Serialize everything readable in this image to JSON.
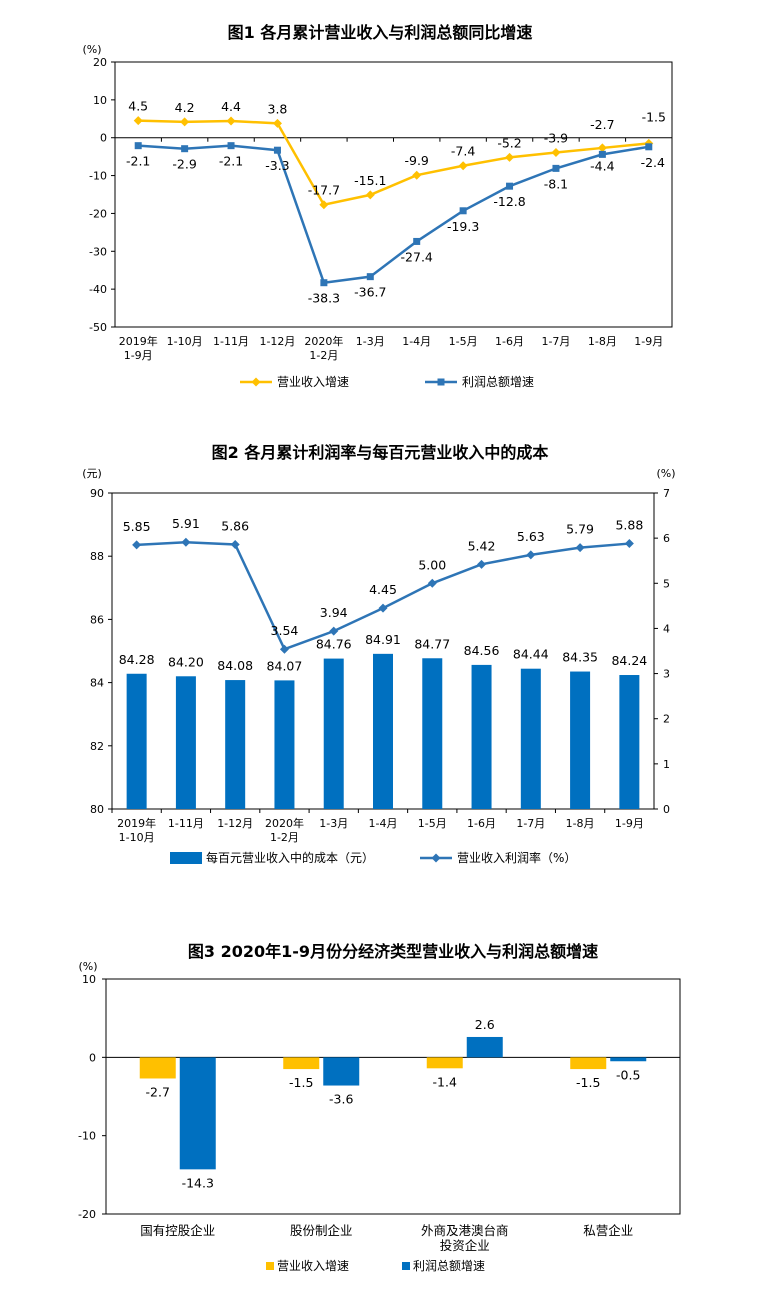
{
  "chart_data": [
    {
      "type": "line",
      "title": "图1  各月累计营业收入与利润总额同比增速",
      "unit": "(%)",
      "categories": [
        "2019年\n1-9月",
        "1-10月",
        "1-11月",
        "1-12月",
        "2020年\n1-2月",
        "1-3月",
        "1-4月",
        "1-5月",
        "1-6月",
        "1-7月",
        "1-8月",
        "1-9月"
      ],
      "ylim": [
        -50,
        20
      ],
      "yticks": [
        -50,
        -40,
        -30,
        -20,
        -10,
        0,
        10,
        20
      ],
      "series": [
        {
          "name": "营业收入增速",
          "color": "#FFC000",
          "marker": "diamond",
          "values": [
            4.5,
            4.2,
            4.4,
            3.8,
            -17.7,
            -15.1,
            -9.9,
            -7.4,
            -5.2,
            -3.9,
            -2.7,
            -1.5
          ]
        },
        {
          "name": "利润总额增速",
          "color": "#2E75B6",
          "marker": "square",
          "values": [
            -2.1,
            -2.9,
            -2.1,
            -3.3,
            -38.3,
            -36.7,
            -27.4,
            -19.3,
            -12.8,
            -8.1,
            -4.4,
            -2.4
          ]
        }
      ],
      "legend": "bottom",
      "grid": false
    },
    {
      "type": "bar+line",
      "title": "图2  各月累计利润率与每百元营业收入中的成本",
      "left_unit": "(元)",
      "right_unit": "(%)",
      "categories": [
        "2019年\n1-10月",
        "1-11月",
        "1-12月",
        "2020年\n1-2月",
        "1-3月",
        "1-4月",
        "1-5月",
        "1-6月",
        "1-7月",
        "1-8月",
        "1-9月"
      ],
      "left_ylim": [
        80,
        90
      ],
      "left_yticks": [
        80,
        82,
        84,
        86,
        88,
        90
      ],
      "right_ylim": [
        0,
        7
      ],
      "right_yticks": [
        0,
        1,
        2,
        3,
        4,
        5,
        6,
        7
      ],
      "bars": {
        "name": "每百元营业收入中的成本（元）",
        "color": "#0070C0",
        "axis": "left",
        "values": [
          "84.28",
          "84.20",
          "84.08",
          "84.07",
          "84.76",
          "84.91",
          "84.77",
          "84.56",
          "84.44",
          "84.35",
          "84.24"
        ]
      },
      "line": {
        "name": "营业收入利润率（%）",
        "color": "#2E75B6",
        "axis": "right",
        "values": [
          "5.85",
          "5.91",
          "5.86",
          "3.54",
          "3.94",
          "4.45",
          "5.00",
          "5.42",
          "5.63",
          "5.79",
          "5.88"
        ]
      },
      "legend": "bottom",
      "grid": false
    },
    {
      "type": "bar",
      "title": "图3  2020年1-9月份分经济类型营业收入与利润总额增速",
      "unit": "(%)",
      "categories": [
        "国有控股企业",
        "股份制企业",
        "外商及港澳台商\n投资企业",
        "私营企业"
      ],
      "ylim": [
        -20,
        10
      ],
      "yticks": [
        -20,
        -10,
        0,
        10
      ],
      "series": [
        {
          "name": "营业收入增速",
          "color": "#FFC000",
          "values": [
            -2.7,
            -1.5,
            -1.4,
            -1.5
          ]
        },
        {
          "name": "利润总额增速",
          "color": "#0070C0",
          "values": [
            -14.3,
            -3.6,
            2.6,
            -0.5
          ]
        }
      ],
      "legend": "bottom",
      "grid": false
    }
  ]
}
